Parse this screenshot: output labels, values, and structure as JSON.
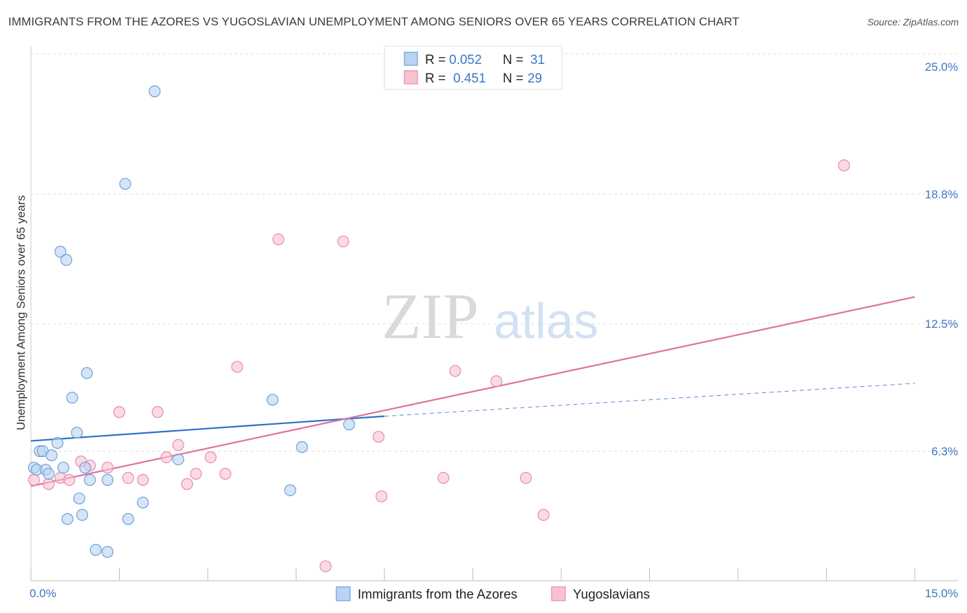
{
  "title": "IMMIGRANTS FROM THE AZORES VS YUGOSLAVIAN UNEMPLOYMENT AMONG SENIORS OVER 65 YEARS CORRELATION CHART",
  "source": "Source: ZipAtlas.com",
  "watermark": {
    "zip": "ZIP",
    "atlas": "atlas"
  },
  "colors": {
    "blue_fill": "#b9d3f2",
    "blue_stroke": "#6c9fd8",
    "blue_line": "#2a6fc9",
    "pink_fill": "#f7c3d3",
    "pink_stroke": "#e58aa8",
    "pink_line": "#e0709a",
    "tick_text": "#3b76c4",
    "grid": "#dddddd"
  },
  "legend": {
    "r_label": "R =",
    "n_label": "N =",
    "blue_r": "0.052",
    "blue_n": "31",
    "pink_r": "0.451",
    "pink_n": "29"
  },
  "chart_data": {
    "type": "scatter",
    "title": "IMMIGRANTS FROM THE AZORES VS YUGOSLAVIAN UNEMPLOYMENT AMONG SENIORS OVER 65 YEARS CORRELATION CHART",
    "xlabel": "",
    "ylabel": "Unemployment Among Seniors over 65 years",
    "xlim": [
      0,
      15
    ],
    "ylim": [
      0,
      25
    ],
    "x_tick_labels": [
      "0.0%",
      "15.0%"
    ],
    "y_ticks": [
      6.3,
      12.5,
      18.8,
      25.0
    ],
    "y_tick_labels": [
      "6.3%",
      "12.5%",
      "18.8%",
      "25.0%"
    ],
    "legend_position": "top-center",
    "series": [
      {
        "name": "Immigrants from the Azores",
        "color": "#6c9fd8",
        "R": 0.052,
        "N": 31,
        "points": [
          [
            0.05,
            5.5
          ],
          [
            0.1,
            5.4
          ],
          [
            0.15,
            6.3
          ],
          [
            0.2,
            6.3
          ],
          [
            0.25,
            5.4
          ],
          [
            0.3,
            5.2
          ],
          [
            0.35,
            6.1
          ],
          [
            0.45,
            6.7
          ],
          [
            0.5,
            16.0
          ],
          [
            0.55,
            5.5
          ],
          [
            0.6,
            15.6
          ],
          [
            0.62,
            3.0
          ],
          [
            0.7,
            8.9
          ],
          [
            0.78,
            7.2
          ],
          [
            0.82,
            4.0
          ],
          [
            0.87,
            3.2
          ],
          [
            0.92,
            5.5
          ],
          [
            0.95,
            10.1
          ],
          [
            1.0,
            4.9
          ],
          [
            1.1,
            1.5
          ],
          [
            1.3,
            1.4
          ],
          [
            1.6,
            19.3
          ],
          [
            1.65,
            3.0
          ],
          [
            1.9,
            3.8
          ],
          [
            2.1,
            23.8
          ],
          [
            2.5,
            5.9
          ],
          [
            4.1,
            8.8
          ],
          [
            4.4,
            4.4
          ],
          [
            4.6,
            6.5
          ],
          [
            5.4,
            7.6
          ],
          [
            1.3,
            4.9
          ]
        ],
        "trend": {
          "x": [
            0,
            6
          ],
          "y": [
            6.8,
            8.0
          ],
          "dashed_to": [
            15,
            9.6
          ]
        }
      },
      {
        "name": "Yugoslavians",
        "color": "#e58aa8",
        "R": 0.451,
        "N": 29,
        "points": [
          [
            0.05,
            4.9
          ],
          [
            0.3,
            4.7
          ],
          [
            0.5,
            5.0
          ],
          [
            0.65,
            4.9
          ],
          [
            0.85,
            5.8
          ],
          [
            1.0,
            5.6
          ],
          [
            1.3,
            5.5
          ],
          [
            1.5,
            8.2
          ],
          [
            1.65,
            5.0
          ],
          [
            1.9,
            4.9
          ],
          [
            2.15,
            8.2
          ],
          [
            2.3,
            6.0
          ],
          [
            2.5,
            6.6
          ],
          [
            2.65,
            4.7
          ],
          [
            2.8,
            5.2
          ],
          [
            3.05,
            6.0
          ],
          [
            3.3,
            5.2
          ],
          [
            3.5,
            10.4
          ],
          [
            4.2,
            16.6
          ],
          [
            5.0,
            0.7
          ],
          [
            5.3,
            16.5
          ],
          [
            5.9,
            7.0
          ],
          [
            5.95,
            4.1
          ],
          [
            7.0,
            5.0
          ],
          [
            7.2,
            10.2
          ],
          [
            7.9,
            9.7
          ],
          [
            8.4,
            5.0
          ],
          [
            8.7,
            3.2
          ],
          [
            13.8,
            20.2
          ]
        ],
        "trend": {
          "x": [
            0,
            15
          ],
          "y": [
            4.6,
            13.8
          ]
        }
      }
    ]
  },
  "bottom_legend": {
    "blue_label": "Immigrants from the Azores",
    "pink_label": "Yugoslavians"
  }
}
